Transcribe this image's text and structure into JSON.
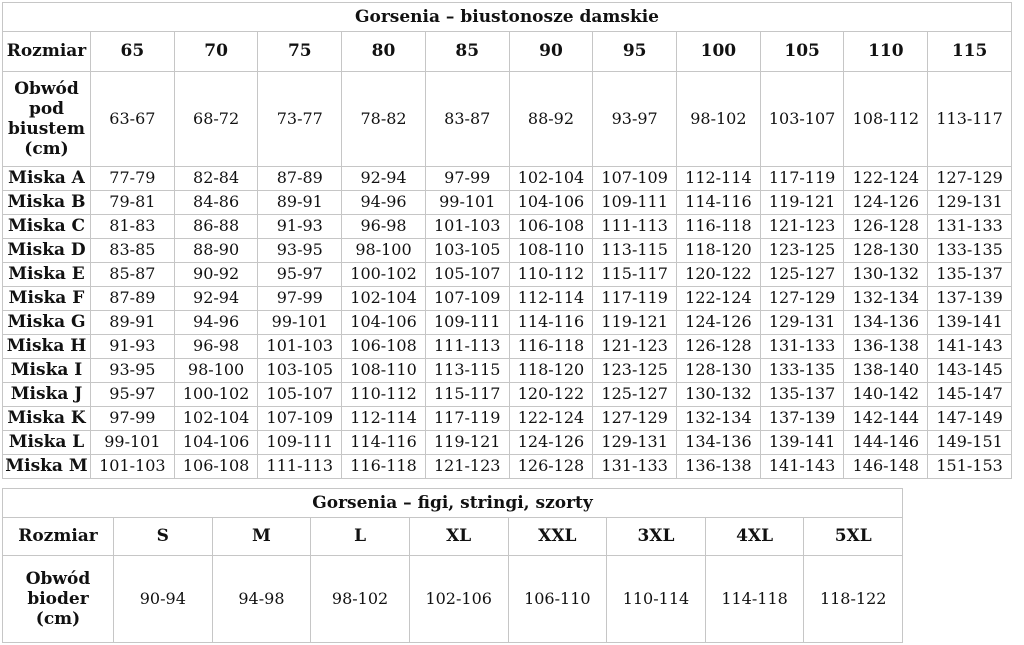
{
  "colors": {
    "background": "#ffffff",
    "border": "#c6c6c6",
    "text": "#111111"
  },
  "tables": [
    {
      "id": "bras",
      "title": "Gorsenia – biustonosze damskie",
      "corner_label": "Rozmiar",
      "columns": [
        "65",
        "70",
        "75",
        "80",
        "85",
        "90",
        "95",
        "100",
        "105",
        "110",
        "115"
      ],
      "rows": [
        {
          "label": "Obwód pod biustem (cm)",
          "kind": "band",
          "values": [
            "63-67",
            "68-72",
            "73-77",
            "78-82",
            "83-87",
            "88-92",
            "93-97",
            "98-102",
            "103-107",
            "108-112",
            "113-117"
          ]
        },
        {
          "label": "Miska A",
          "kind": "data",
          "values": [
            "77-79",
            "82-84",
            "87-89",
            "92-94",
            "97-99",
            "102-104",
            "107-109",
            "112-114",
            "117-119",
            "122-124",
            "127-129"
          ]
        },
        {
          "label": "Miska B",
          "kind": "data",
          "values": [
            "79-81",
            "84-86",
            "89-91",
            "94-96",
            "99-101",
            "104-106",
            "109-111",
            "114-116",
            "119-121",
            "124-126",
            "129-131"
          ]
        },
        {
          "label": "Miska C",
          "kind": "data",
          "values": [
            "81-83",
            "86-88",
            "91-93",
            "96-98",
            "101-103",
            "106-108",
            "111-113",
            "116-118",
            "121-123",
            "126-128",
            "131-133"
          ]
        },
        {
          "label": "Miska D",
          "kind": "data",
          "values": [
            "83-85",
            "88-90",
            "93-95",
            "98-100",
            "103-105",
            "108-110",
            "113-115",
            "118-120",
            "123-125",
            "128-130",
            "133-135"
          ]
        },
        {
          "label": "Miska E",
          "kind": "data",
          "values": [
            "85-87",
            "90-92",
            "95-97",
            "100-102",
            "105-107",
            "110-112",
            "115-117",
            "120-122",
            "125-127",
            "130-132",
            "135-137"
          ]
        },
        {
          "label": "Miska F",
          "kind": "data",
          "values": [
            "87-89",
            "92-94",
            "97-99",
            "102-104",
            "107-109",
            "112-114",
            "117-119",
            "122-124",
            "127-129",
            "132-134",
            "137-139"
          ]
        },
        {
          "label": "Miska G",
          "kind": "data",
          "values": [
            "89-91",
            "94-96",
            "99-101",
            "104-106",
            "109-111",
            "114-116",
            "119-121",
            "124-126",
            "129-131",
            "134-136",
            "139-141"
          ]
        },
        {
          "label": "Miska H",
          "kind": "data",
          "values": [
            "91-93",
            "96-98",
            "101-103",
            "106-108",
            "111-113",
            "116-118",
            "121-123",
            "126-128",
            "131-133",
            "136-138",
            "141-143"
          ]
        },
        {
          "label": "Miska I",
          "kind": "data",
          "values": [
            "93-95",
            "98-100",
            "103-105",
            "108-110",
            "113-115",
            "118-120",
            "123-125",
            "128-130",
            "133-135",
            "138-140",
            "143-145"
          ]
        },
        {
          "label": "Miska J",
          "kind": "data",
          "values": [
            "95-97",
            "100-102",
            "105-107",
            "110-112",
            "115-117",
            "120-122",
            "125-127",
            "130-132",
            "135-137",
            "140-142",
            "145-147"
          ]
        },
        {
          "label": "Miska K",
          "kind": "data",
          "values": [
            "97-99",
            "102-104",
            "107-109",
            "112-114",
            "117-119",
            "122-124",
            "127-129",
            "132-134",
            "137-139",
            "142-144",
            "147-149"
          ]
        },
        {
          "label": "Miska L",
          "kind": "data",
          "values": [
            "99-101",
            "104-106",
            "109-111",
            "114-116",
            "119-121",
            "124-126",
            "129-131",
            "134-136",
            "139-141",
            "144-146",
            "149-151"
          ]
        },
        {
          "label": "Miska M",
          "kind": "data",
          "values": [
            "101-103",
            "106-108",
            "111-113",
            "116-118",
            "121-123",
            "126-128",
            "131-133",
            "136-138",
            "141-143",
            "146-148",
            "151-153"
          ]
        }
      ]
    },
    {
      "id": "panties",
      "title": "Gorsenia – figi, stringi, szorty",
      "corner_label": "Rozmiar",
      "columns": [
        "S",
        "M",
        "L",
        "XL",
        "XXL",
        "3XL",
        "4XL",
        "5XL"
      ],
      "rows": [
        {
          "label": "Obwód bioder (cm)",
          "kind": "band",
          "values": [
            "90-94",
            "94-98",
            "98-102",
            "102-106",
            "106-110",
            "110-114",
            "114-118",
            "118-122"
          ]
        }
      ]
    }
  ]
}
